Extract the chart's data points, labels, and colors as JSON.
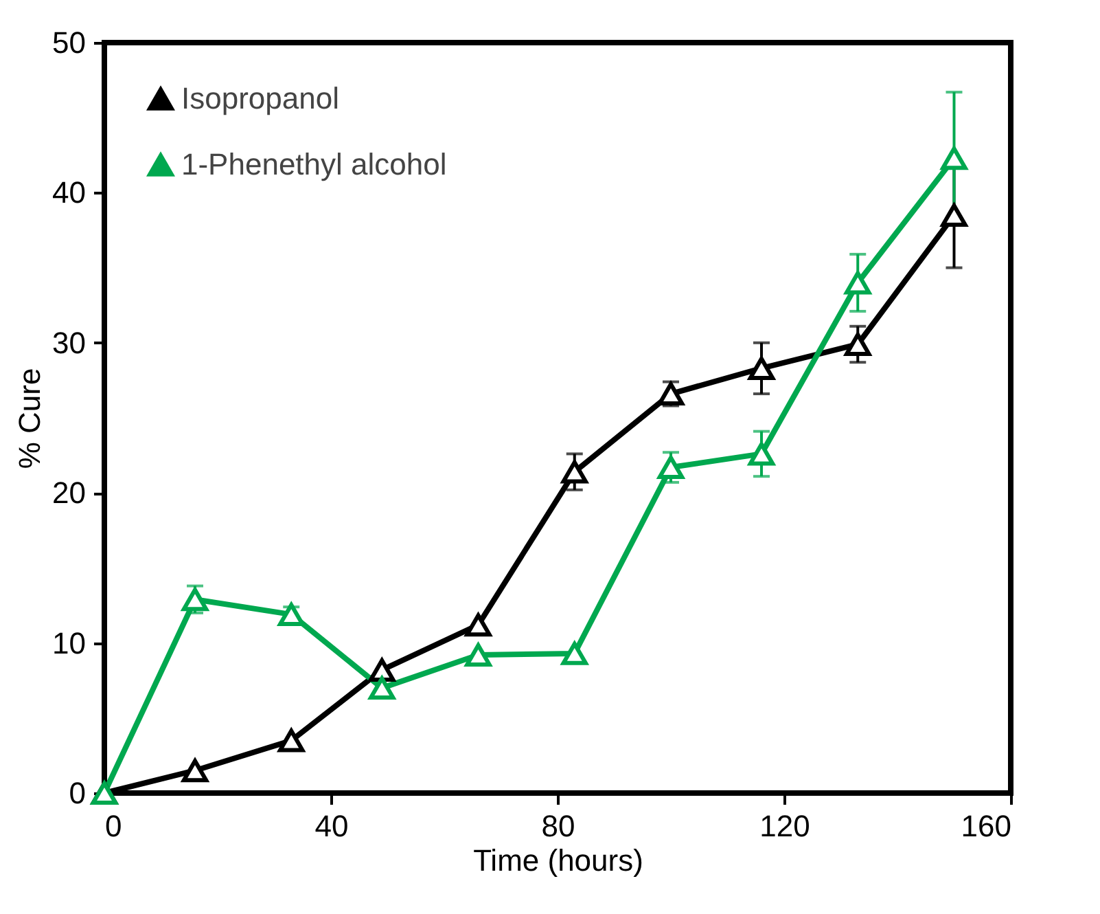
{
  "chart_data": {
    "type": "line",
    "xlabel": "Time (hours)",
    "ylabel": "% Cure",
    "xlim": [
      0,
      160
    ],
    "xticks": [
      0,
      40,
      80,
      120,
      160
    ],
    "ylim": [
      0,
      50
    ],
    "yticks": [
      0,
      10,
      20,
      30,
      40,
      50
    ],
    "grid": false,
    "legend": "top left",
    "marker": "triangle",
    "line_style": "solid",
    "x": [
      0,
      16,
      33,
      49,
      66,
      83,
      100,
      116,
      133,
      150
    ],
    "series": [
      {
        "name": "Isopropanol",
        "color": "#000000",
        "values": [
          0,
          1.5,
          3.5,
          8.2,
          11.2,
          21.4,
          26.6,
          28.3,
          29.9,
          38.5
        ],
        "errors": [
          null,
          null,
          null,
          null,
          null,
          1.2,
          0.8,
          1.7,
          1.2,
          3.5
        ]
      },
      {
        "name": "1-Phenethyl alcohol",
        "color": "#00a84f",
        "values": [
          0,
          12.9,
          11.9,
          7.0,
          9.2,
          9.3,
          21.7,
          22.6,
          34.0,
          42.3
        ],
        "errors": [
          null,
          0.9,
          0.5,
          null,
          null,
          null,
          1.0,
          1.5,
          1.9,
          4.4
        ]
      }
    ]
  }
}
